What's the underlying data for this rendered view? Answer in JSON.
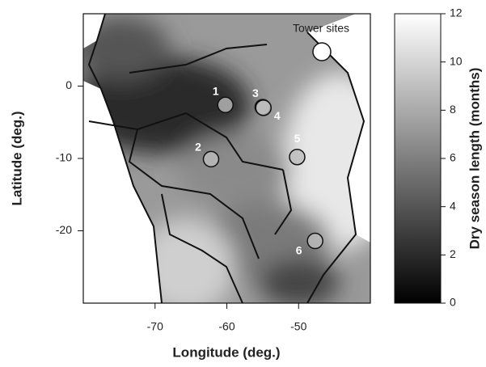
{
  "chart_data": {
    "type": "map",
    "xlabel": "Longitude (deg.)",
    "ylabel": "Latitude (deg.)",
    "xlim": [
      -80,
      -40
    ],
    "ylim": [
      -30,
      10
    ],
    "xticks": [
      -70,
      -60,
      -50
    ],
    "yticks": [
      0,
      -10,
      -20
    ],
    "legend_label": "Tower sites",
    "sites": [
      {
        "label": "1",
        "lon": -60.2,
        "lat": -2.6
      },
      {
        "label": "2",
        "lon": -62.2,
        "lat": -10.1
      },
      {
        "label": "3",
        "lon": -55.0,
        "lat": -2.9
      },
      {
        "label": "4",
        "lon": -54.9,
        "lat": -3.0
      },
      {
        "label": "5",
        "lon": -50.2,
        "lat": -9.8
      },
      {
        "label": "6",
        "lon": -47.7,
        "lat": -21.4
      }
    ],
    "colorbar": {
      "label": "Dry season length (months)",
      "lim": [
        0,
        12
      ],
      "ticks": [
        0,
        2,
        4,
        6,
        8,
        10,
        12
      ]
    }
  }
}
